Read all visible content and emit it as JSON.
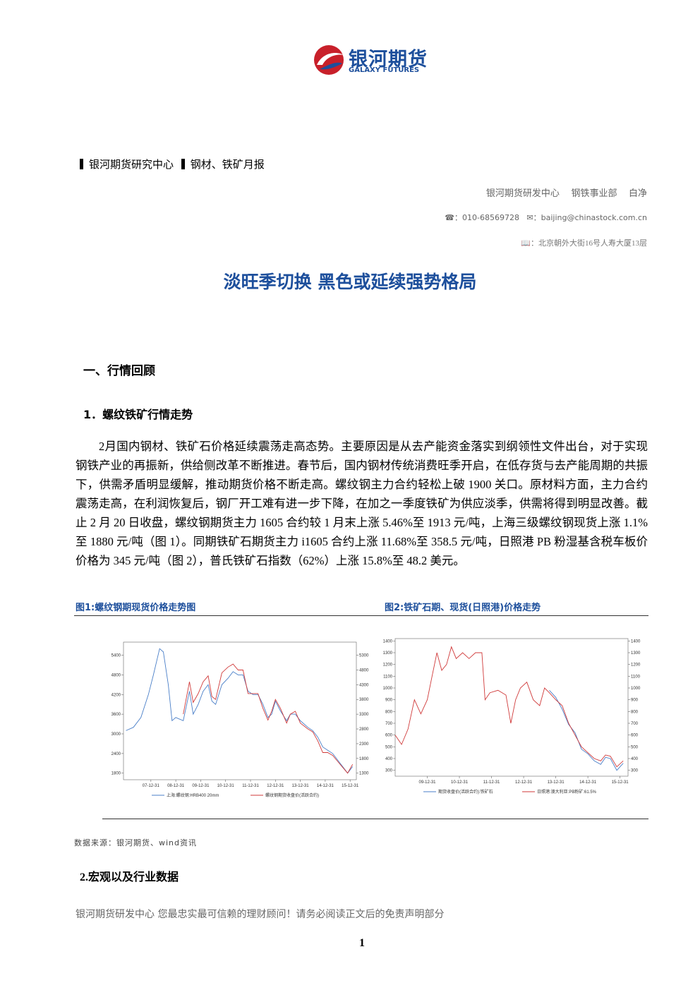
{
  "header": {
    "logo_cn": "银河期货",
    "logo_en": "GALAXY FUTURES",
    "center": "银河期货研究中心",
    "report": "钢材、铁矿月报",
    "dept1": "银河期货研发中心",
    "dept2": "钢铁事业部",
    "author": "白净",
    "phone": "010-68569728",
    "email": "baijing@chinastock.com.cn",
    "address": "北京朝外大街16号人寿大厦13层"
  },
  "title": "淡旺季切换 黑色或延续强势格局",
  "section1": "一、行情回顾",
  "subsection1": "1．螺纹铁矿行情走势",
  "paragraph": "2月国内钢材、铁矿石价格延续震荡走高态势。主要原因是从去产能资金落实到纲领性文件出台，对于实现钢铁产业的再振新，供给侧改革不断推进。春节后，国内钢材传统消费旺季开启，在低存货与去产能周期的共振下，供需矛盾明显缓解，推动期货价格不断走高。螺纹钢主力合约轻松上破 1900 关口。原材料方面，主力合约震荡走高，在利润恢复后，钢厂开工难有进一步下降，在加之一季度铁矿为供应淡季，供需将得到明显改善。截止 2 月 20 日收盘，螺纹钢期货主力 1605 合约较 1 月末上涨 5.46%至 1913 元/吨，上海三级螺纹钢现货上涨 1.1%至 1880 元/吨（图 1）。同期铁矿石期货主力 i1605 合约上涨 11.68%至 358.5 元/吨，日照港 PB 粉湿基含税车板价价格为 345 元/吨（图 2），普氏铁矿石指数（62%）上涨 15.8%至 48.2 美元。",
  "charts": [
    {
      "type": "line",
      "title": "图1:螺纹钢期现货价格走势图",
      "xlim": [
        2006.9,
        2016.25
      ],
      "xticks": [
        {
          "value": 2008.0,
          "label": "07-12-31"
        },
        {
          "value": 2009.0,
          "label": "08-12-31"
        },
        {
          "value": 2010.0,
          "label": "09-12-31"
        },
        {
          "value": 2011.0,
          "label": "10-12-31"
        },
        {
          "value": 2012.0,
          "label": "11-12-31"
        },
        {
          "value": 2013.0,
          "label": "12-12-31"
        },
        {
          "value": 2014.0,
          "label": "13-12-31"
        },
        {
          "value": 2015.0,
          "label": "14-12-31"
        },
        {
          "value": 2016.0,
          "label": "15-12-31"
        }
      ],
      "ylim": [
        1600,
        5800
      ],
      "yticks": [
        1800,
        2400,
        3000,
        3600,
        4200,
        4800,
        5400
      ],
      "y2lim": [
        1078,
        5744
      ],
      "y2ticks": [
        1300,
        1800,
        2300,
        2800,
        3300,
        3800,
        4300,
        4800,
        5300
      ],
      "series": [
        {
          "name": "上海:螺纹钢:HRB400 20mm",
          "color": "#4a7fc8",
          "x": [
            2007.0,
            2007.3,
            2007.6,
            2007.9,
            2008.1,
            2008.35,
            2008.5,
            2008.7,
            2008.85,
            2009.0,
            2009.3,
            2009.55,
            2009.7,
            2009.9,
            2010.1,
            2010.3,
            2010.45,
            2010.6,
            2010.85,
            2011.1,
            2011.3,
            2011.5,
            2011.7,
            2011.9,
            2012.1,
            2012.3,
            2012.5,
            2012.7,
            2012.85,
            2013.0,
            2013.2,
            2013.45,
            2013.6,
            2013.8,
            2014.0,
            2014.3,
            2014.5,
            2014.7,
            2014.9,
            2015.1,
            2015.3,
            2015.5,
            2015.7,
            2015.9,
            2016.1
          ],
          "values": [
            3100,
            3200,
            3500,
            4200,
            4800,
            5600,
            5500,
            4500,
            3400,
            3500,
            3400,
            4300,
            3600,
            3900,
            4300,
            4500,
            4000,
            3900,
            4500,
            4700,
            4900,
            4800,
            4800,
            4300,
            4200,
            4200,
            3900,
            3500,
            3600,
            4000,
            3700,
            3400,
            3600,
            3600,
            3400,
            3200,
            3100,
            2900,
            2600,
            2500,
            2400,
            2200,
            2000,
            1800,
            2000
          ]
        },
        {
          "name": "螺纹钢期货收盘价(活跃合约)",
          "color": "#d03a3a",
          "axis": "y2",
          "x": [
            2009.3,
            2009.55,
            2009.7,
            2009.9,
            2010.1,
            2010.3,
            2010.45,
            2010.6,
            2010.85,
            2011.1,
            2011.3,
            2011.5,
            2011.7,
            2011.9,
            2012.1,
            2012.3,
            2012.5,
            2012.7,
            2012.85,
            2013.0,
            2013.2,
            2013.45,
            2013.6,
            2013.8,
            2014.0,
            2014.3,
            2014.5,
            2014.7,
            2014.9,
            2015.1,
            2015.3,
            2015.5,
            2015.7,
            2015.9,
            2016.1
          ],
          "values": [
            3300,
            4400,
            3700,
            4000,
            4400,
            4600,
            3900,
            3800,
            4700,
            4900,
            5000,
            4800,
            4800,
            4000,
            4000,
            4000,
            3500,
            3100,
            3400,
            3800,
            3500,
            3000,
            3300,
            3400,
            3000,
            2800,
            2700,
            2400,
            2000,
            2000,
            1900,
            1700,
            1500,
            1300,
            1600
          ]
        }
      ]
    },
    {
      "type": "line",
      "title": "图2:铁矿石期、现货(日照港)价格走势",
      "xlim": [
        2009.0,
        2016.25
      ],
      "xticks": [
        {
          "value": 2010.0,
          "label": "09-12-31"
        },
        {
          "value": 2011.0,
          "label": "10-12-31"
        },
        {
          "value": 2012.0,
          "label": "11-12-31"
        },
        {
          "value": 2013.0,
          "label": "12-12-31"
        },
        {
          "value": 2014.0,
          "label": "13-12-31"
        },
        {
          "value": 2015.0,
          "label": "14-12-31"
        },
        {
          "value": 2016.0,
          "label": "15-12-31"
        }
      ],
      "ylim": [
        250,
        1420
      ],
      "yticks": [
        300,
        400,
        500,
        600,
        700,
        800,
        900,
        1000,
        1100,
        1200,
        1300,
        1400
      ],
      "y2lim": [
        250,
        1420
      ],
      "y2ticks": [
        300,
        400,
        500,
        600,
        700,
        800,
        900,
        1000,
        1100,
        1200,
        1300,
        1400
      ],
      "series": [
        {
          "name": "期货收盘价(活跃合约):铁矿石",
          "color": "#4a7fc8",
          "axis": "y2",
          "x": [
            2013.8,
            2014.0,
            2014.2,
            2014.4,
            2014.6,
            2014.8,
            2015.0,
            2015.2,
            2015.4,
            2015.55,
            2015.7,
            2015.9,
            2016.1
          ],
          "values": [
            980,
            920,
            820,
            690,
            620,
            480,
            440,
            380,
            350,
            410,
            400,
            300,
            360
          ]
        },
        {
          "name": "日照港:澳大利亚:PB粉矿:61.5%",
          "color": "#d03a3a",
          "x": [
            2009.0,
            2009.2,
            2009.4,
            2009.6,
            2009.8,
            2010.0,
            2010.15,
            2010.3,
            2010.45,
            2010.6,
            2010.75,
            2010.9,
            2011.1,
            2011.3,
            2011.5,
            2011.7,
            2011.8,
            2011.95,
            2012.2,
            2012.45,
            2012.6,
            2012.75,
            2012.9,
            2013.1,
            2013.3,
            2013.5,
            2013.65,
            2013.8,
            2014.0,
            2014.2,
            2014.4,
            2014.6,
            2014.8,
            2015.0,
            2015.2,
            2015.4,
            2015.55,
            2015.7,
            2015.9,
            2016.1
          ],
          "values": [
            600,
            520,
            650,
            900,
            780,
            900,
            1100,
            1300,
            1150,
            1200,
            1350,
            1250,
            1300,
            1250,
            1300,
            1300,
            900,
            960,
            980,
            940,
            700,
            900,
            1000,
            1050,
            900,
            850,
            1000,
            960,
            900,
            850,
            700,
            600,
            500,
            450,
            400,
            380,
            430,
            420,
            330,
            380
          ]
        }
      ]
    }
  ],
  "source": "数据来源：银河期货、wind资讯",
  "section2": "2.宏观以及行业数据",
  "footer": "银河期货研发中心 您最忠实最可信赖的理财顾问！请务必阅读正文后的免责声明部分",
  "page_number": "1"
}
